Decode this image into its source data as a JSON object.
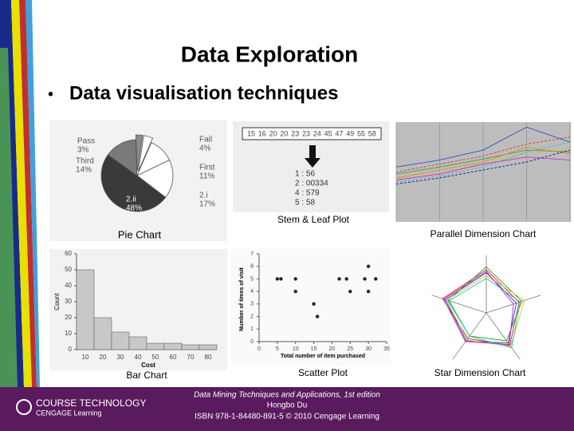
{
  "title": "Data Exploration",
  "bullet": "Data visualisation techniques",
  "pie": {
    "caption": "Pie Chart",
    "categories": [
      "Fail",
      "First",
      "2.i",
      "2.ii",
      "Third",
      "Pass"
    ],
    "values": [
      4,
      11,
      17,
      48,
      14,
      3
    ],
    "value_labels": [
      "4%",
      "11%",
      "17%",
      "48%",
      "14%",
      "3%"
    ],
    "colors": [
      "#ffffff",
      "#ffffff",
      "#ffffff",
      "#3a3a3a",
      "#7a7a7a",
      "#8c8c8c"
    ]
  },
  "stem_leaf": {
    "caption": "Stem & Leaf Plot",
    "data": [
      15,
      16,
      20,
      20,
      23,
      23,
      24,
      45,
      47,
      49,
      55,
      58
    ],
    "stems": [
      "1 : 56",
      "2 : 00334",
      "4 : 579",
      "5 : 58"
    ]
  },
  "parallel": {
    "caption": "Parallel Dimension Chart",
    "series": [
      {
        "color": "#1f3fbf",
        "values": [
          0.55,
          0.62,
          0.72,
          0.95,
          0.8
        ]
      },
      {
        "color": "#e02020",
        "values": [
          0.5,
          0.58,
          0.66,
          0.78,
          0.85
        ]
      },
      {
        "color": "#20a020",
        "values": [
          0.48,
          0.55,
          0.63,
          0.72,
          0.7
        ]
      },
      {
        "color": "#e0c020",
        "values": [
          0.45,
          0.5,
          0.6,
          0.68,
          0.75
        ]
      },
      {
        "color": "#c020c0",
        "values": [
          0.42,
          0.48,
          0.58,
          0.65,
          0.62
        ]
      },
      {
        "color": "#20c0c0",
        "values": [
          0.4,
          0.46,
          0.55,
          0.7,
          0.8
        ]
      },
      {
        "color": "#f08020",
        "values": [
          0.44,
          0.52,
          0.6,
          0.75,
          0.68
        ]
      },
      {
        "color": "#000080",
        "values": [
          0.38,
          0.44,
          0.52,
          0.6,
          0.72
        ]
      }
    ]
  },
  "bar": {
    "caption": "Bar Chart",
    "xlabel": "Cost",
    "ylabel": "Count",
    "categories": [
      10,
      20,
      30,
      40,
      50,
      60,
      70,
      80
    ],
    "values": [
      50,
      20,
      11,
      8,
      4,
      4,
      3,
      3
    ],
    "ylim": [
      0,
      60
    ],
    "yticks": [
      0,
      10,
      20,
      30,
      40,
      50,
      60
    ]
  },
  "scatter": {
    "caption": "Scatter Plot",
    "xlabel": "Total number of item purchased",
    "ylabel": "Number of times of visit",
    "x": [
      5,
      6,
      10,
      10,
      15,
      16,
      22,
      24,
      25,
      29,
      30,
      30,
      32
    ],
    "y": [
      5,
      5,
      5,
      4,
      3,
      2,
      5,
      5,
      4,
      5,
      6,
      4,
      5
    ],
    "xlim": [
      0,
      35
    ],
    "ylim": [
      0,
      7
    ],
    "xticks": [
      0,
      5,
      10,
      15,
      20,
      25,
      30,
      35
    ],
    "yticks": [
      0,
      1,
      2,
      3,
      4,
      5,
      6,
      7
    ]
  },
  "star": {
    "caption": "Star Dimension Chart",
    "series": [
      {
        "color": "#e02020",
        "values": [
          0.75,
          0.6,
          0.7,
          0.55,
          0.8
        ]
      },
      {
        "color": "#1f3fbf",
        "values": [
          0.7,
          0.55,
          0.65,
          0.6,
          0.75
        ]
      },
      {
        "color": "#20a020",
        "values": [
          0.8,
          0.65,
          0.6,
          0.5,
          0.7
        ]
      },
      {
        "color": "#e0c020",
        "values": [
          0.65,
          0.7,
          0.72,
          0.58,
          0.72
        ]
      },
      {
        "color": "#c020c0",
        "values": [
          0.72,
          0.5,
          0.68,
          0.62,
          0.78
        ]
      },
      {
        "color": "#20c0c0",
        "values": [
          0.6,
          0.62,
          0.75,
          0.5,
          0.68
        ]
      }
    ]
  },
  "footer": {
    "brand": "COURSE TECHNOLOGY",
    "brand_sub": "CENGAGE Learning",
    "lines": [
      "Data Mining Techniques and Applications, 1st edition",
      "Hongbo Du",
      "ISBN 978-1-84480-891-5 © 2010 Cengage Learning"
    ]
  }
}
